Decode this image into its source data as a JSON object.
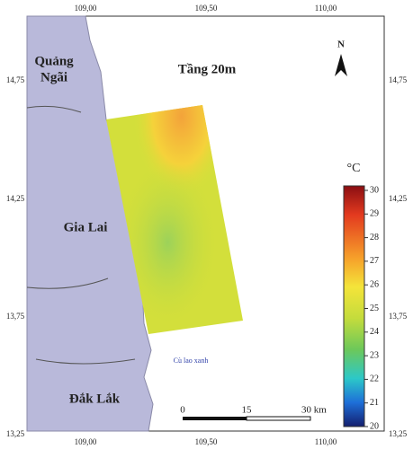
{
  "map": {
    "title": "Tầng 20m",
    "x_ticks": [
      "109,00",
      "109,50",
      "110,00"
    ],
    "y_ticks": [
      "14,75",
      "14,25",
      "13,75",
      "13,25"
    ],
    "places": [
      "Quảng",
      "Ngãi",
      "Gia Lai",
      "Đắk Lắk",
      "Cù lao xanh"
    ],
    "north": "N",
    "legend": {
      "unit": "°C",
      "lim": [
        20,
        30
      ],
      "ticks": [
        30,
        29,
        28,
        27,
        26,
        25,
        24,
        23,
        22,
        21,
        20
      ]
    },
    "scale_bar": [
      "0",
      "15",
      "30 km"
    ]
  }
}
